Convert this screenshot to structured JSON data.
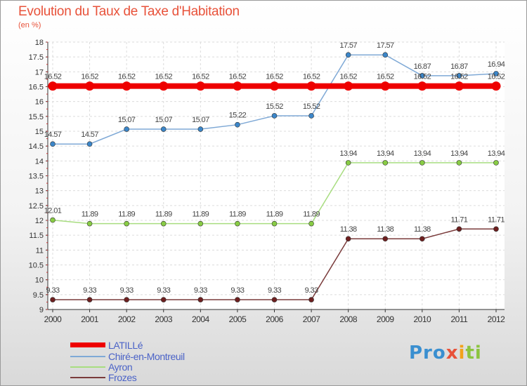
{
  "chart_data": {
    "type": "line",
    "title": "Evolution du Taux de Taxe d'Habitation",
    "subtitle": "(en %)",
    "xlabel": "",
    "ylabel": "",
    "x": [
      "2000",
      "2001",
      "2002",
      "2003",
      "2004",
      "2005",
      "2006",
      "2007",
      "2008",
      "2009",
      "2010",
      "2011",
      "2012"
    ],
    "ylim": [
      9,
      18
    ],
    "yticks": [
      "9",
      "9.5",
      "10",
      "10.5",
      "11",
      "11.5",
      "12",
      "12.5",
      "13",
      "13.5",
      "14",
      "14.5",
      "15",
      "15.5",
      "16",
      "16.5",
      "17",
      "17.5",
      "18"
    ],
    "ytick_values": [
      9,
      9.5,
      10,
      10.5,
      11,
      11.5,
      12,
      12.5,
      13,
      13.5,
      14,
      14.5,
      15,
      15.5,
      16,
      16.5,
      17,
      17.5,
      18
    ],
    "grid": true,
    "legend_position": "bottom-left",
    "series": [
      {
        "name": "LATILLé",
        "color": "#ee0000",
        "style": "thick",
        "values": [
          16.52,
          16.52,
          16.52,
          16.52,
          16.52,
          16.52,
          16.52,
          16.52,
          16.52,
          16.52,
          16.52,
          16.52,
          16.52
        ],
        "labels": [
          "16.52",
          "16.52",
          "16.52",
          "16.52",
          "16.52",
          "16.52",
          "16.52",
          "16.52",
          "16.52",
          "16.52",
          "16.52",
          "16.52",
          "16.52"
        ]
      },
      {
        "name": "Chiré-en-Montreuil",
        "color": "#7fa9d6",
        "marker_color": "#3b86c9",
        "style": "thin",
        "values": [
          14.57,
          14.57,
          15.07,
          15.07,
          15.07,
          15.22,
          15.52,
          15.52,
          17.57,
          17.57,
          16.87,
          16.87,
          16.94
        ],
        "labels": [
          "14.57",
          "14.57",
          "15.07",
          "15.07",
          "15.07",
          "15.22",
          "15.52",
          "15.52",
          "17.57",
          "17.57",
          "16.87",
          "16.87",
          "16.94"
        ]
      },
      {
        "name": "Ayron",
        "color": "#a8dd80",
        "marker_color": "#88cc44",
        "style": "thin",
        "values": [
          12.01,
          11.89,
          11.89,
          11.89,
          11.89,
          11.89,
          11.89,
          11.89,
          13.94,
          13.94,
          13.94,
          13.94,
          13.94
        ],
        "labels": [
          "12.01",
          "11.89",
          "11.89",
          "11.89",
          "11.89",
          "11.89",
          "11.89",
          "11.89",
          "13.94",
          "13.94",
          "13.94",
          "13.94",
          "13.94"
        ]
      },
      {
        "name": "Frozes",
        "color": "#7a3b3b",
        "marker_color": "#6e1f1f",
        "style": "thin",
        "values": [
          9.33,
          9.33,
          9.33,
          9.33,
          9.33,
          9.33,
          9.33,
          9.33,
          11.38,
          11.38,
          11.38,
          11.71,
          11.71
        ],
        "labels": [
          "9.33",
          "9.33",
          "9.33",
          "9.33",
          "9.33",
          "9.33",
          "9.33",
          "9.33",
          "11.38",
          "11.38",
          "11.38",
          "11.71",
          "11.71"
        ]
      }
    ]
  },
  "logo": {
    "parts": [
      "Pro",
      "x",
      "i",
      "ti"
    ]
  }
}
